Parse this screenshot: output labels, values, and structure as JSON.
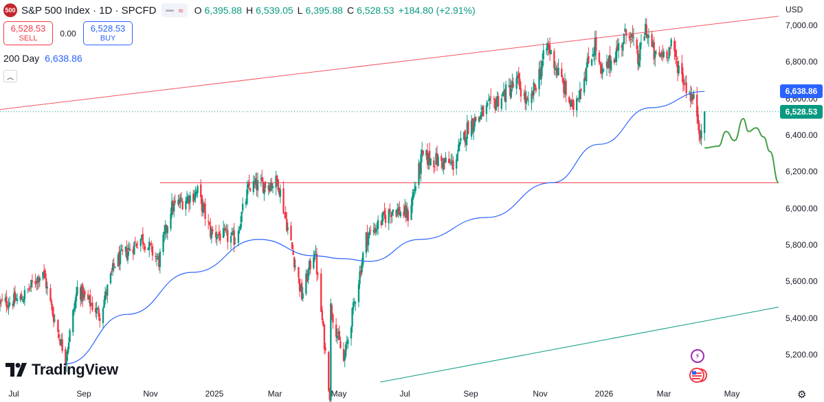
{
  "header": {
    "logo_text": "500",
    "title": "S&P 500 Index · 1D · SPCFD",
    "ohlc": [
      {
        "key": "O",
        "value": "6,395.88"
      },
      {
        "key": "H",
        "value": "6,539.05"
      },
      {
        "key": "L",
        "value": "6,395.88"
      },
      {
        "key": "C",
        "value": "6,528.53"
      }
    ],
    "change": "+184.80 (+2.91%)"
  },
  "trade": {
    "sell_price": "6,528.53",
    "sell_label": "SELL",
    "spread": "0.00",
    "buy_price": "6,528.53",
    "buy_label": "BUY"
  },
  "indicator": {
    "name": "200 Day",
    "value": "6,638.86"
  },
  "currency": "USD",
  "price_labels": {
    "ma": "6,638.86",
    "last": "6,528.53"
  },
  "brand": "TradingView",
  "colors": {
    "up": "#089981",
    "down": "#f23645",
    "ma": "#2962ff",
    "resistance": "#f23645",
    "support_line": "#089981",
    "projection": "#43a047"
  },
  "chart_data": {
    "type": "candlestick",
    "title": "S&P 500 Index · 1D · SPCFD",
    "ylim": [
      5080,
      7080
    ],
    "y_ticks": [
      "7,000.00",
      "6,800.00",
      "6,600.00",
      "6,400.00",
      "6,200.00",
      "6,000.00",
      "5,800.00",
      "5,600.00",
      "5,400.00",
      "5,200.00"
    ],
    "x_ticks": [
      "Jul",
      "Sep",
      "Nov",
      "2025",
      "Mar",
      "May",
      "Jul",
      "Sep",
      "Nov",
      "2026",
      "Mar",
      "May"
    ],
    "date_range": [
      "2024-06-05",
      "2026-05-31"
    ],
    "close_path": [
      {
        "date": "2024-06-05",
        "close": 5480
      },
      {
        "date": "2024-06-25",
        "close": 5505
      },
      {
        "date": "2024-07-15",
        "close": 5660
      },
      {
        "date": "2024-07-24",
        "close": 5430
      },
      {
        "date": "2024-08-05",
        "close": 5180
      },
      {
        "date": "2024-08-16",
        "close": 5560
      },
      {
        "date": "2024-09-06",
        "close": 5420
      },
      {
        "date": "2024-09-20",
        "close": 5700
      },
      {
        "date": "2024-10-15",
        "close": 5840
      },
      {
        "date": "2024-10-31",
        "close": 5710
      },
      {
        "date": "2024-11-11",
        "close": 6000
      },
      {
        "date": "2024-12-06",
        "close": 6090
      },
      {
        "date": "2024-12-18",
        "close": 5870
      },
      {
        "date": "2025-01-10",
        "close": 5830
      },
      {
        "date": "2025-01-23",
        "close": 6118
      },
      {
        "date": "2025-02-19",
        "close": 6144
      },
      {
        "date": "2025-03-13",
        "close": 5520
      },
      {
        "date": "2025-03-25",
        "close": 5780
      },
      {
        "date": "2025-04-08",
        "close": 4982
      },
      {
        "date": "2025-04-09",
        "close": 5460
      },
      {
        "date": "2025-04-21",
        "close": 5160
      },
      {
        "date": "2025-05-12",
        "close": 5840
      },
      {
        "date": "2025-06-06",
        "close": 6000
      },
      {
        "date": "2025-06-20",
        "close": 5960
      },
      {
        "date": "2025-07-03",
        "close": 6280
      },
      {
        "date": "2025-08-01",
        "close": 6240
      },
      {
        "date": "2025-08-15",
        "close": 6450
      },
      {
        "date": "2025-09-30",
        "close": 6690
      },
      {
        "date": "2025-10-10",
        "close": 6550
      },
      {
        "date": "2025-10-28",
        "close": 6890
      },
      {
        "date": "2025-11-20",
        "close": 6540
      },
      {
        "date": "2025-12-11",
        "close": 6900
      },
      {
        "date": "2025-12-17",
        "close": 6720
      },
      {
        "date": "2026-01-12",
        "close": 6980
      },
      {
        "date": "2026-01-20",
        "close": 6800
      },
      {
        "date": "2026-01-27",
        "close": 6990
      },
      {
        "date": "2026-02-05",
        "close": 6820
      },
      {
        "date": "2026-02-20",
        "close": 6880
      },
      {
        "date": "2026-03-05",
        "close": 6680
      },
      {
        "date": "2026-03-15",
        "close": 6560
      },
      {
        "date": "2026-03-20",
        "close": 6380
      },
      {
        "date": "2026-03-23",
        "close": 6528.53
      }
    ],
    "ma_200": [
      {
        "date": "2024-08-05",
        "value": 5150
      },
      {
        "date": "2024-10-01",
        "value": 5420
      },
      {
        "date": "2024-12-01",
        "value": 5650
      },
      {
        "date": "2025-02-01",
        "value": 5830
      },
      {
        "date": "2025-03-25",
        "value": 5740
      },
      {
        "date": "2025-04-20",
        "value": 5725
      },
      {
        "date": "2025-05-15",
        "value": 5710
      },
      {
        "date": "2025-07-01",
        "value": 5830
      },
      {
        "date": "2025-09-01",
        "value": 5950
      },
      {
        "date": "2025-11-01",
        "value": 6140
      },
      {
        "date": "2025-12-15",
        "value": 6350
      },
      {
        "date": "2026-02-01",
        "value": 6550
      },
      {
        "date": "2026-03-23",
        "value": 6638.86
      }
    ],
    "resistance_line": [
      {
        "date": "2024-06-05",
        "value": 6540
      },
      {
        "date": "2026-05-31",
        "value": 7050
      }
    ],
    "horizontal_level": {
      "from": "2024-11-01",
      "to": "2026-05-31",
      "value": 6140
    },
    "support_line": [
      {
        "date": "2025-05-25",
        "value": 5050
      },
      {
        "date": "2026-05-31",
        "value": 5460
      }
    ],
    "projection": [
      {
        "date": "2026-03-23",
        "value": 6330
      },
      {
        "date": "2026-04-05",
        "value": 6340
      },
      {
        "date": "2026-04-12",
        "value": 6420
      },
      {
        "date": "2026-04-20",
        "value": 6370
      },
      {
        "date": "2026-04-28",
        "value": 6490
      },
      {
        "date": "2026-05-03",
        "value": 6420
      },
      {
        "date": "2026-05-10",
        "value": 6440
      },
      {
        "date": "2026-05-17",
        "value": 6390
      },
      {
        "date": "2026-05-23",
        "value": 6310
      },
      {
        "date": "2026-05-31",
        "value": 6140
      }
    ],
    "last_close": 6528.53
  }
}
